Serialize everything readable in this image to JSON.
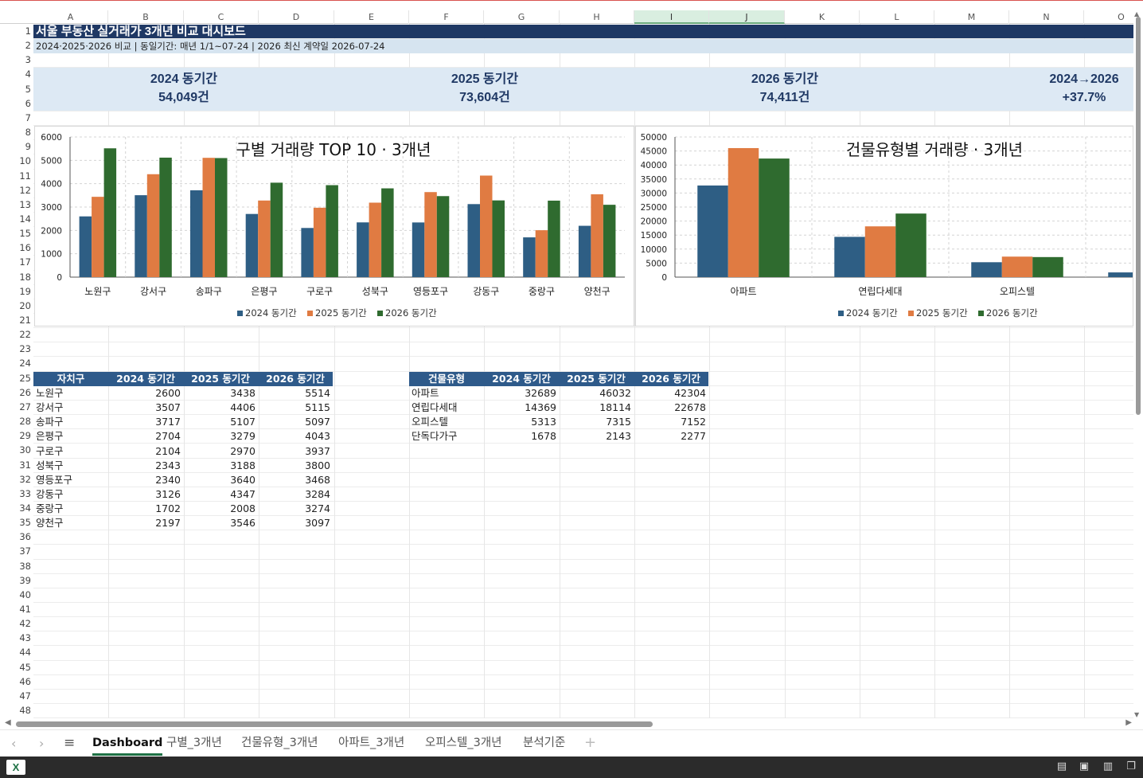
{
  "columns": [
    "A",
    "B",
    "C",
    "D",
    "E",
    "F",
    "G",
    "H",
    "I",
    "J",
    "K",
    "L",
    "M",
    "N",
    "O"
  ],
  "rows": [
    "1",
    "2",
    "3",
    "4",
    "5",
    "6",
    "7",
    "8",
    "9",
    "10",
    "11",
    "12",
    "13",
    "14",
    "15",
    "16",
    "17",
    "18",
    "19",
    "20",
    "21",
    "22",
    "23",
    "24",
    "25",
    "26",
    "27",
    "28",
    "29",
    "30",
    "31",
    "32",
    "33",
    "34",
    "35",
    "36",
    "37",
    "38",
    "39",
    "40",
    "41",
    "42",
    "43",
    "44",
    "45",
    "46",
    "47",
    "48"
  ],
  "title": "서울 부동산 실거래가 3개년 비교 대시보드",
  "subtitle": "2024·2025·2026 비교 | 동일기간: 매년 1/1~07-24 | 2026 최신 계약일 2026-07-24",
  "kpis": [
    {
      "label": "2024 동기간",
      "value": "54,049건"
    },
    {
      "label": "2025 동기간",
      "value": "73,604건"
    },
    {
      "label": "2026 동기간",
      "value": "74,411건"
    },
    {
      "label": "2024→2026",
      "value": "+37.7%"
    }
  ],
  "colors": {
    "y2024": "#2e5e84",
    "y2025": "#e07b42",
    "y2026": "#2f6b2f",
    "header": "#1f3864",
    "accent": "#1e7145"
  },
  "chart_data": [
    {
      "type": "bar",
      "title": "구별 거래량 TOP 10 · 3개년",
      "categories": [
        "노원구",
        "강서구",
        "송파구",
        "은평구",
        "구로구",
        "성북구",
        "영등포구",
        "강동구",
        "중랑구",
        "양천구"
      ],
      "series": [
        {
          "name": "2024 동기간",
          "values": [
            2600,
            3507,
            3717,
            2704,
            2104,
            2343,
            2340,
            3126,
            1702,
            2197
          ]
        },
        {
          "name": "2025 동기간",
          "values": [
            3438,
            4406,
            5107,
            3279,
            2970,
            3188,
            3640,
            4347,
            2008,
            3546
          ]
        },
        {
          "name": "2026 동기간",
          "values": [
            5514,
            5115,
            5097,
            4043,
            3937,
            3800,
            3468,
            3284,
            3274,
            3097
          ]
        }
      ],
      "yticks": [
        "0",
        "1000",
        "2000",
        "3000",
        "4000",
        "5000",
        "6000"
      ],
      "ylim": [
        0,
        6000
      ],
      "legend": "bottom"
    },
    {
      "type": "bar",
      "title": "건물유형별 거래량 · 3개년",
      "categories": [
        "아파트",
        "연립다세대",
        "오피스텔",
        "단독다가구"
      ],
      "series": [
        {
          "name": "2024 동기간",
          "values": [
            32689,
            14369,
            5313,
            1678
          ]
        },
        {
          "name": "2025 동기간",
          "values": [
            46032,
            18114,
            7315,
            2143
          ]
        },
        {
          "name": "2026 동기간",
          "values": [
            42304,
            22678,
            7152,
            2277
          ]
        }
      ],
      "yticks": [
        "0",
        "5000",
        "10000",
        "15000",
        "20000",
        "25000",
        "30000",
        "35000",
        "40000",
        "45000",
        "50000"
      ],
      "ylim": [
        0,
        50000
      ],
      "legend": "bottom"
    }
  ],
  "district_table": {
    "headers": [
      "자치구",
      "2024 동기간",
      "2025 동기간",
      "2026 동기간"
    ],
    "rows": [
      [
        "노원구",
        "2600",
        "3438",
        "5514"
      ],
      [
        "강서구",
        "3507",
        "4406",
        "5115"
      ],
      [
        "송파구",
        "3717",
        "5107",
        "5097"
      ],
      [
        "은평구",
        "2704",
        "3279",
        "4043"
      ],
      [
        "구로구",
        "2104",
        "2970",
        "3937"
      ],
      [
        "성북구",
        "2343",
        "3188",
        "3800"
      ],
      [
        "영등포구",
        "2340",
        "3640",
        "3468"
      ],
      [
        "강동구",
        "3126",
        "4347",
        "3284"
      ],
      [
        "중랑구",
        "1702",
        "2008",
        "3274"
      ],
      [
        "양천구",
        "2197",
        "3546",
        "3097"
      ]
    ]
  },
  "type_table": {
    "headers": [
      "건물유형",
      "2024 동기간",
      "2025 동기간",
      "2026 동기간"
    ],
    "rows": [
      [
        "아파트",
        "32689",
        "46032",
        "42304"
      ],
      [
        "연립다세대",
        "14369",
        "18114",
        "22678"
      ],
      [
        "오피스텔",
        "5313",
        "7315",
        "7152"
      ],
      [
        "단독다가구",
        "1678",
        "2143",
        "2277"
      ]
    ]
  },
  "sheet_tabs": [
    "Dashboard",
    "구별_3개년",
    "건물유형_3개년",
    "아파트_3개년",
    "오피스텔_3개년",
    "분석기준"
  ],
  "active_tab": "Dashboard",
  "icons": {
    "prev": "chevron-left-icon",
    "next": "chevron-right-icon",
    "menu": "hamburger-icon",
    "add": "plus-icon",
    "app": "excel-icon"
  }
}
